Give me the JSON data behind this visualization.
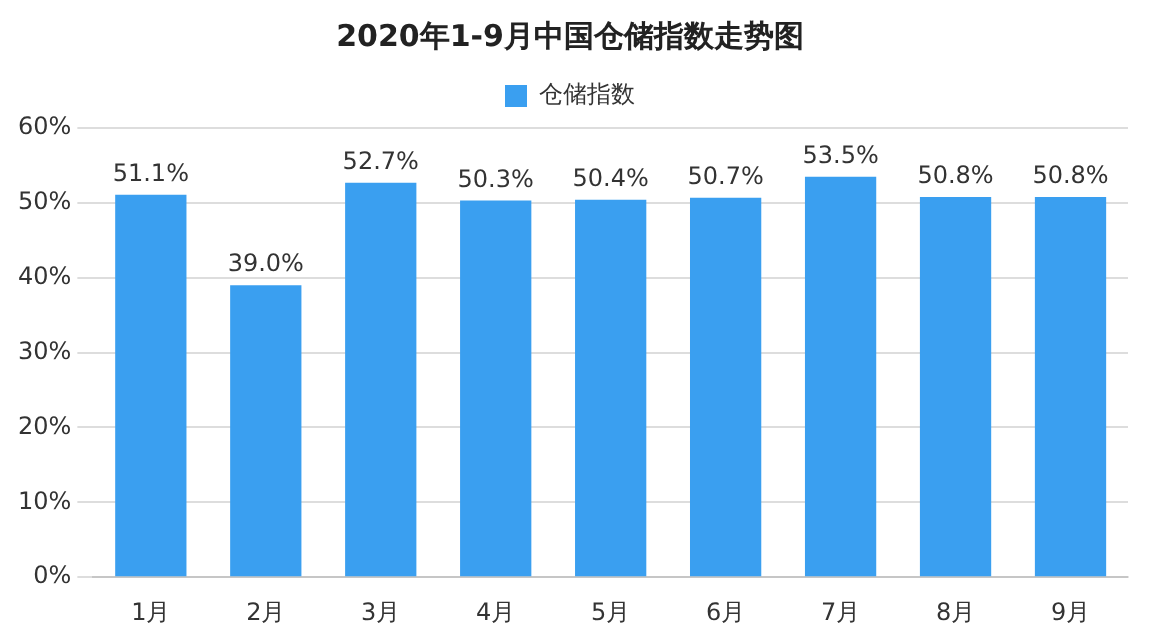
{
  "chart_data": {
    "type": "bar",
    "title": "2020年1-9月中国仓储指数走势图",
    "categories": [
      "1月",
      "2月",
      "3月",
      "4月",
      "5月",
      "6月",
      "7月",
      "8月",
      "9月"
    ],
    "series": [
      {
        "name": "仓储指数",
        "color": "#3a9ff0",
        "values": [
          51.1,
          39.0,
          52.7,
          50.3,
          50.4,
          50.7,
          53.5,
          50.8,
          50.8
        ],
        "value_labels": [
          "51.1%",
          "39.0%",
          "52.7%",
          "50.3%",
          "50.4%",
          "50.7%",
          "53.5%",
          "50.8%",
          "50.8%"
        ]
      }
    ],
    "ylim": [
      0,
      60
    ],
    "yticks": [
      {
        "value": 0,
        "label": "0%"
      },
      {
        "value": 10,
        "label": "10%"
      },
      {
        "value": 20,
        "label": "20%"
      },
      {
        "value": 30,
        "label": "30%"
      },
      {
        "value": 40,
        "label": "40%"
      },
      {
        "value": 50,
        "label": "50%"
      },
      {
        "value": 60,
        "label": "60%"
      }
    ],
    "grid": "y",
    "legend": "top"
  }
}
